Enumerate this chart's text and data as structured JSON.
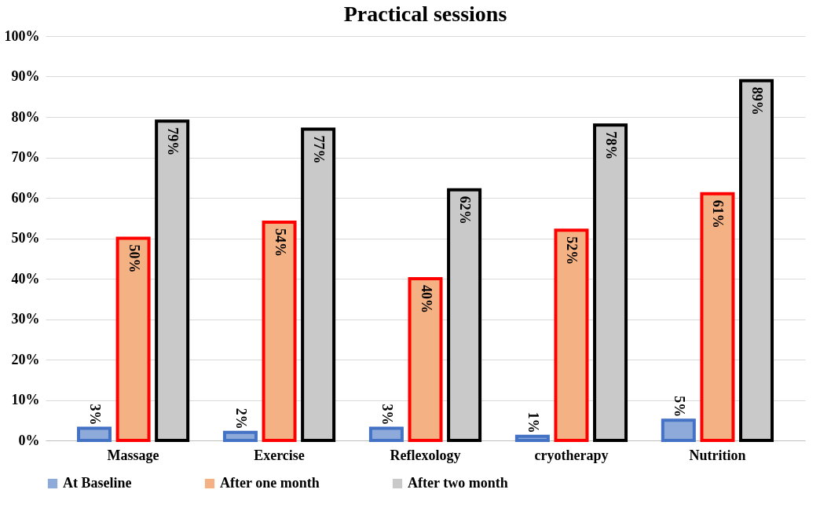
{
  "chart_data": {
    "type": "bar",
    "title": "Practical sessions",
    "categories": [
      "Massage",
      "Exercise",
      "Reflexology",
      "cryotherapy",
      "Nutrition"
    ],
    "series": [
      {
        "name": "At Baseline",
        "color": "#8eaadb",
        "values": [
          3,
          2,
          3,
          1,
          5
        ],
        "value_labels": [
          "3%",
          "2%",
          "3%",
          "1%",
          "5%"
        ]
      },
      {
        "name": "After one month",
        "color": "#f4b183",
        "values": [
          50,
          54,
          40,
          52,
          61
        ],
        "value_labels": [
          "50%",
          "54%",
          "40%",
          "52%",
          "61%"
        ]
      },
      {
        "name": "After two month",
        "color": "#c9c9c9",
        "values": [
          79,
          77,
          62,
          78,
          89
        ],
        "value_labels": [
          "79%",
          "77%",
          "62%",
          "78%",
          "89%"
        ]
      }
    ],
    "ylim": [
      0,
      100
    ],
    "yticks": [
      {
        "value": 0,
        "label": "0%"
      },
      {
        "value": 10,
        "label": "10%"
      },
      {
        "value": 20,
        "label": "20%"
      },
      {
        "value": 30,
        "label": "30%"
      },
      {
        "value": 40,
        "label": "40%"
      },
      {
        "value": 50,
        "label": "50%"
      },
      {
        "value": 60,
        "label": "60%"
      },
      {
        "value": 70,
        "label": "70%"
      },
      {
        "value": 80,
        "label": "80%"
      },
      {
        "value": 90,
        "label": "90%"
      },
      {
        "value": 100,
        "label": "100%"
      }
    ],
    "grid": "y",
    "legend": "bottom"
  }
}
